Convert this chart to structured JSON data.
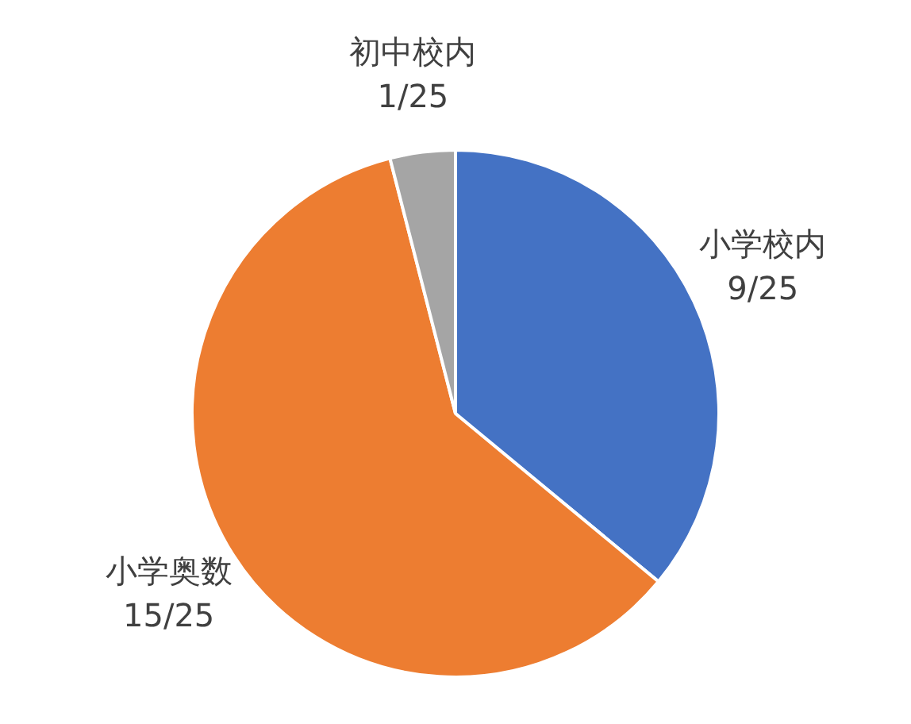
{
  "chart_data": {
    "type": "pie",
    "categories": [
      "小学校内",
      "小学奥数",
      "初中校内"
    ],
    "values": [
      36,
      60,
      4
    ],
    "value_labels": [
      "9/25",
      "15/25",
      "1/25"
    ],
    "colors": [
      "#4472c4",
      "#ed7d31",
      "#a5a5a5"
    ],
    "legend": false
  }
}
